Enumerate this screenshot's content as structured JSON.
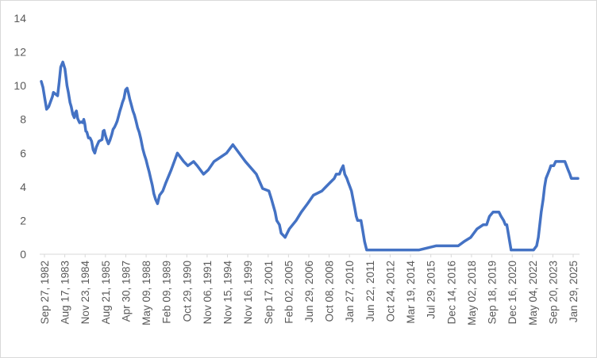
{
  "chart_data": {
    "type": "line",
    "title": "",
    "xlabel": "",
    "ylabel": "",
    "ylim": [
      0,
      14
    ],
    "yticks": [
      0,
      2,
      4,
      6,
      8,
      10,
      12,
      14
    ],
    "grid": false,
    "legend": "none",
    "line_color": "#4472c4",
    "xlim": [
      "1982-09-27",
      "2025-06-30"
    ],
    "x_tick_labels": [
      "Sep 27, 1982",
      "Aug 17, 1983",
      "Nov 23, 1984",
      "Aug 21, 1985",
      "Apr 30, 1987",
      "May 09, 1988",
      "Feb 09, 1989",
      "Oct 29, 1990",
      "Nov 06, 1991",
      "Nov 15, 1994",
      "Nov 16, 1999",
      "Sep 17, 2001",
      "Feb 02, 2005",
      "Jun 29, 2006",
      "Oct 08, 2008",
      "Jan 27, 2010",
      "Jun 22, 2011",
      "Oct 24, 2012",
      "Mar 19, 2014",
      "Jul 29, 2015",
      "Dec 14, 2016",
      "May 02, 2018",
      "Sep 18, 2019",
      "Dec 16, 2020",
      "May 04, 2022",
      "Sep 20, 2023",
      "Jan 29, 2025"
    ],
    "series": [
      {
        "x": [
          "1982-09-27",
          "1982-11-15",
          "1983-01-10",
          "1983-03-01",
          "1983-05-01",
          "1983-06-15",
          "1983-08-17",
          "1983-09-15",
          "1983-11-15",
          "1984-01-15",
          "1984-03-01",
          "1984-04-15",
          "1984-06-15",
          "1984-08-15",
          "1984-09-15",
          "1984-10-15",
          "1984-11-23",
          "1985-01-10",
          "1985-02-15",
          "1985-04-01",
          "1985-05-15",
          "1985-06-15",
          "1985-07-15",
          "1985-08-21",
          "1985-10-15",
          "1985-12-01",
          "1986-01-15",
          "1986-02-15",
          "1986-03-15",
          "1986-04-15",
          "1986-05-15",
          "1986-07-01",
          "1986-08-15",
          "1986-10-01",
          "1986-11-15",
          "1987-01-01",
          "1987-02-15",
          "1987-04-30",
          "1987-06-15",
          "1987-08-01",
          "1987-09-01",
          "1987-09-30",
          "1987-10-30",
          "1987-12-15",
          "1988-02-01",
          "1988-03-15",
          "1988-05-09",
          "1988-06-15",
          "1988-08-01",
          "1988-09-15",
          "1988-10-15",
          "1988-11-30",
          "1989-01-01",
          "1989-02-09",
          "1989-03-15",
          "1989-04-30",
          "1989-06-15",
          "1989-07-30",
          "1989-09-01",
          "1989-10-15",
          "1989-12-01",
          "1990-01-15",
          "1990-03-01",
          "1990-04-15",
          "1990-06-01",
          "1990-07-15",
          "1990-09-01",
          "1990-10-29",
          "1990-12-15",
          "1991-02-01",
          "1991-03-15",
          "1991-05-01",
          "1991-06-15",
          "1991-08-01",
          "1991-09-15",
          "1991-11-06",
          "1992-01-01",
          "1992-03-01",
          "1992-06-01",
          "1992-09-01",
          "1993-02-01",
          "1993-08-01",
          "1994-02-01",
          "1994-06-01",
          "1994-11-15",
          "1995-03-01",
          "1995-09-01",
          "1996-01-15",
          "1996-07-01",
          "1997-01-01",
          "1997-07-01",
          "1998-01-01",
          "1998-10-01",
          "1999-01-01",
          "1999-11-16",
          "2000-05-15",
          "2000-11-15",
          "2001-01-31",
          "2001-03-20",
          "2001-05-15",
          "2001-07-01",
          "2001-09-17",
          "2001-11-06",
          "2002-01-15",
          "2002-03-01",
          "2002-05-01",
          "2002-07-01",
          "2003-01-15",
          "2003-06-15",
          "2003-12-15",
          "2004-06-01",
          "2005-02-02",
          "2005-06-01",
          "2005-10-01",
          "2006-01-31",
          "2006-03-28",
          "2006-06-29",
          "2006-08-15",
          "2006-10-15",
          "2006-12-01",
          "2007-01-31",
          "2007-03-15",
          "2007-05-01",
          "2007-06-15",
          "2007-08-01",
          "2007-09-18",
          "2007-10-31",
          "2007-12-11",
          "2008-01-22",
          "2008-03-18",
          "2008-04-30",
          "2008-06-30",
          "2008-08-30",
          "2008-10-08",
          "2008-10-29",
          "2008-12-16",
          "2010-01-27",
          "2011-06-22",
          "2012-10-24",
          "2014-03-19",
          "2015-07-29",
          "2015-12-16",
          "2016-06-01",
          "2016-12-14",
          "2017-03-15",
          "2017-06-14",
          "2017-12-13",
          "2018-03-21",
          "2018-05-02",
          "2018-06-13",
          "2018-09-26",
          "2018-12-19",
          "2019-03-15",
          "2019-05-15",
          "2019-07-31",
          "2019-09-18",
          "2019-10-30",
          "2020-03-03",
          "2020-03-15",
          "2020-06-15",
          "2020-12-16",
          "2021-06-15",
          "2021-12-15",
          "2022-03-16",
          "2022-05-04",
          "2022-06-15",
          "2022-07-27",
          "2022-09-21",
          "2022-11-02",
          "2022-12-14",
          "2023-02-01",
          "2023-03-22",
          "2023-05-03",
          "2023-07-26",
          "2023-09-20",
          "2023-12-15",
          "2024-03-15",
          "2024-06-15",
          "2024-09-18",
          "2024-11-07",
          "2024-12-18",
          "2025-01-29",
          "2025-06-30"
        ],
        "y": [
          10.25,
          9.9,
          9.2,
          8.6,
          8.75,
          9.0,
          9.35,
          9.6,
          9.5,
          9.4,
          10.2,
          11.1,
          11.4,
          11.0,
          10.5,
          10.0,
          9.6,
          9.0,
          8.75,
          8.3,
          8.1,
          8.4,
          8.5,
          8.05,
          7.8,
          7.85,
          7.8,
          8.0,
          7.75,
          7.3,
          7.25,
          6.9,
          6.9,
          6.7,
          6.2,
          6.0,
          6.35,
          6.7,
          6.75,
          6.8,
          7.3,
          7.35,
          7.1,
          6.8,
          6.55,
          6.75,
          7.1,
          7.4,
          7.55,
          7.75,
          7.9,
          8.25,
          8.5,
          8.75,
          9.0,
          9.25,
          9.75,
          9.85,
          9.6,
          9.2,
          8.85,
          8.5,
          8.25,
          7.9,
          7.5,
          7.25,
          6.85,
          6.25,
          5.9,
          5.6,
          5.25,
          4.9,
          4.5,
          4.1,
          3.6,
          3.25,
          3.0,
          3.5,
          3.75,
          4.25,
          5.0,
          6.0,
          5.5,
          5.25,
          5.5,
          5.25,
          4.75,
          5.0,
          5.5,
          5.75,
          6.0,
          6.5,
          5.75,
          5.5,
          4.75,
          3.9,
          3.75,
          3.25,
          2.9,
          2.5,
          2.0,
          1.75,
          1.25,
          1.1,
          1.0,
          1.25,
          1.5,
          2.0,
          2.5,
          3.0,
          3.5,
          3.75,
          4.0,
          4.25,
          4.5,
          4.75,
          4.75,
          5.0,
          5.25,
          4.75,
          4.5,
          4.25,
          4.0,
          3.75,
          3.25,
          2.75,
          2.25,
          2.0,
          2.0,
          2.0,
          1.5,
          0.75,
          0.25,
          0.25,
          0.25,
          0.25,
          0.25,
          0.25,
          0.25,
          0.5,
          0.5,
          0.5,
          0.75,
          1.0,
          1.25,
          1.5,
          1.75,
          1.75,
          2.0,
          2.25,
          2.5,
          2.5,
          2.5,
          2.25,
          2.0,
          1.75,
          1.75,
          0.25,
          0.25,
          0.25,
          0.25,
          0.25,
          0.25,
          0.5,
          1.0,
          1.75,
          2.5,
          3.25,
          4.0,
          4.5,
          4.75,
          5.0,
          5.25,
          5.25,
          5.5,
          5.5,
          5.5,
          5.5,
          5.0,
          4.75,
          4.5,
          4.5,
          4.5
        ]
      }
    ]
  }
}
